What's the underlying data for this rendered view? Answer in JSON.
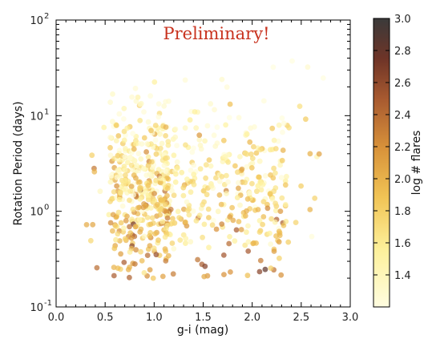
{
  "chart_data": {
    "type": "scatter",
    "annotation": "Preliminary!",
    "xlabel": "g-i (mag)",
    "ylabel": "Rotation Period (days)",
    "xlim": [
      0.0,
      3.0
    ],
    "ylim": [
      0.1,
      100
    ],
    "yscale": "log",
    "x_ticks": [
      "0.0",
      "0.5",
      "1.0",
      "1.5",
      "2.0",
      "2.5",
      "3.0"
    ],
    "x_tick_values": [
      0.0,
      0.5,
      1.0,
      1.5,
      2.0,
      2.5,
      3.0
    ],
    "y_tick_values": [
      0.1,
      1,
      10,
      100
    ],
    "y_tick_mantissa": "10",
    "y_tick_exponents": [
      "-1",
      "0",
      "1",
      "2"
    ],
    "colorbar": {
      "label": "log # flares",
      "range": [
        1.2,
        3.0
      ],
      "ticks": [
        "1.4",
        "1.6",
        "1.8",
        "2.0",
        "2.2",
        "2.4",
        "2.6",
        "2.8",
        "3.0"
      ],
      "tick_values": [
        1.4,
        1.6,
        1.8,
        2.0,
        2.2,
        2.4,
        2.6,
        2.8,
        3.0
      ]
    },
    "annotation_color": "#c8321e",
    "point_count": 750
  }
}
